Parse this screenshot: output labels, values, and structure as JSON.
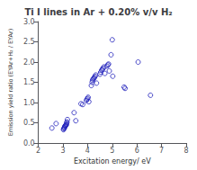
{
  "chart_data": {
    "type": "scatter",
    "title": "Ti I lines in Ar + 0.20% v/v H₂",
    "xlabel": "Excitation energy/ eV",
    "ylabel": "Emission yield ratio (EYAr+H₂ / EYAr)",
    "xlim": [
      2,
      8
    ],
    "ylim": [
      0,
      3
    ],
    "xticks": [
      2,
      3,
      4,
      5,
      6,
      7,
      8
    ],
    "yticks": [
      {
        "value": 0,
        "label": "0.0"
      },
      0.5,
      {
        "value": 1,
        "label": "1.0"
      },
      1.5,
      {
        "value": 2,
        "label": "2.0"
      },
      2.5,
      {
        "value": 3,
        "label": "3.0"
      }
    ],
    "color": "#2222bb",
    "marker": "circle",
    "grid": false,
    "x": [
      2.55,
      2.72,
      3.02,
      3.03,
      3.05,
      3.06,
      3.07,
      3.08,
      3.1,
      3.11,
      3.13,
      3.14,
      3.15,
      3.16,
      3.18,
      3.45,
      3.52,
      3.73,
      3.8,
      3.95,
      3.97,
      4.0,
      4.02,
      4.05,
      4.15,
      4.18,
      4.2,
      4.22,
      4.25,
      4.28,
      4.3,
      4.33,
      4.36,
      4.5,
      4.53,
      4.57,
      4.6,
      4.63,
      4.66,
      4.7,
      4.78,
      4.82,
      4.85,
      4.88,
      4.95,
      5.0,
      5.02,
      5.48,
      5.52,
      6.05,
      6.55
    ],
    "y": [
      0.37,
      0.48,
      0.33,
      0.35,
      0.37,
      0.38,
      0.4,
      0.42,
      0.43,
      0.44,
      0.45,
      0.46,
      0.5,
      0.52,
      0.58,
      0.75,
      0.55,
      0.97,
      0.95,
      1.05,
      1.08,
      1.1,
      1.13,
      1.02,
      1.42,
      1.5,
      1.55,
      1.58,
      1.6,
      1.62,
      1.65,
      1.68,
      1.48,
      1.7,
      1.75,
      1.8,
      1.82,
      1.85,
      1.88,
      1.72,
      1.9,
      1.93,
      1.95,
      1.78,
      2.18,
      2.55,
      1.65,
      1.38,
      1.35,
      2.0,
      1.18
    ]
  }
}
